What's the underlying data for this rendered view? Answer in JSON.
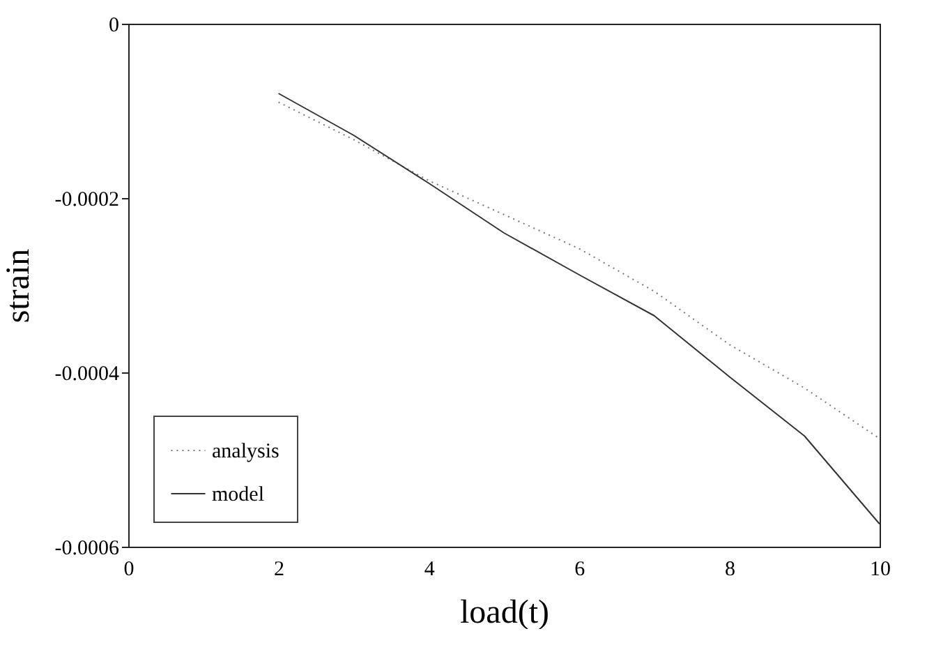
{
  "chart_data": {
    "type": "line",
    "xlabel": "load(t)",
    "ylabel": "strain",
    "x": [
      2,
      3,
      4,
      5,
      6,
      7,
      8,
      9,
      10
    ],
    "series": [
      {
        "name": "analysis",
        "color": "#777777",
        "line_style": "dotted",
        "values": [
          -9e-05,
          -0.000133,
          -0.00018,
          -0.000219,
          -0.000258,
          -0.000307,
          -0.000368,
          -0.000418,
          -0.000476
        ]
      },
      {
        "name": "model",
        "color": "#333333",
        "line_style": "solid",
        "values": [
          -8e-05,
          -0.000128,
          -0.000183,
          -0.00024,
          -0.000288,
          -0.000335,
          -0.000405,
          -0.000473,
          -0.000574
        ]
      }
    ],
    "xlim": [
      0,
      10
    ],
    "xticks": [
      0,
      2,
      4,
      6,
      8,
      10
    ],
    "ylim": [
      -0.0006,
      0
    ],
    "yticks": [
      {
        "value": -0.0006,
        "label": "-0.0006"
      },
      {
        "value": -0.0004,
        "label": "-0.0004"
      },
      {
        "value": -0.0002,
        "label": "-0.0002"
      },
      {
        "value": 0,
        "label": "0"
      }
    ],
    "grid": false,
    "legend": "bottom left",
    "marker": "none"
  }
}
